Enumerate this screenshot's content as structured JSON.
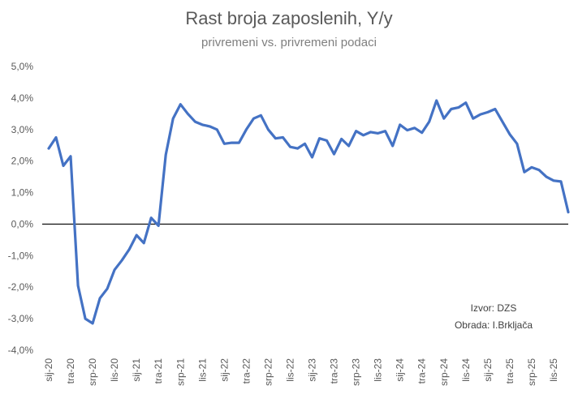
{
  "chart_data": {
    "type": "line",
    "title": "Rast broja zaposlenih, Y/y",
    "subtitle": "privremeni vs. privremeni podaci",
    "ylim": [
      -4,
      5
    ],
    "yticks": [
      "-4,0%",
      "-3,0%",
      "-2,0%",
      "-1,0%",
      "0,0%",
      "1,0%",
      "2,0%",
      "3,0%",
      "4,0%",
      "5,0%"
    ],
    "ytick_values": [
      -4,
      -3,
      -2,
      -1,
      0,
      1,
      2,
      3,
      4,
      5
    ],
    "xticks": [
      {
        "label": "sij-20",
        "index": 0
      },
      {
        "label": "tra-20",
        "index": 3
      },
      {
        "label": "srp-20",
        "index": 6
      },
      {
        "label": "lis-20",
        "index": 9
      },
      {
        "label": "sij-21",
        "index": 12
      },
      {
        "label": "tra-21",
        "index": 15
      },
      {
        "label": "srp-21",
        "index": 18
      },
      {
        "label": "lis-21",
        "index": 21
      },
      {
        "label": "sij-22",
        "index": 24
      },
      {
        "label": "tra-22",
        "index": 27
      },
      {
        "label": "srp-22",
        "index": 30
      },
      {
        "label": "lis-22",
        "index": 33
      },
      {
        "label": "sij-23",
        "index": 36
      },
      {
        "label": "tra-23",
        "index": 39
      },
      {
        "label": "srp-23",
        "index": 42
      },
      {
        "label": "lis-23",
        "index": 45
      },
      {
        "label": "sij-24",
        "index": 48
      },
      {
        "label": "tra-24",
        "index": 51
      },
      {
        "label": "srp-24",
        "index": 54
      },
      {
        "label": "lis-24",
        "index": 57
      },
      {
        "label": "sij-25",
        "index": 60
      },
      {
        "label": "tra-25",
        "index": 63
      },
      {
        "label": "srp-25",
        "index": 66
      },
      {
        "label": "lis-25",
        "index": 69
      }
    ],
    "series": [
      {
        "color": "#4472C4",
        "values": [
          2.4,
          2.75,
          1.85,
          2.15,
          -1.95,
          -3.0,
          -3.15,
          -2.35,
          -2.05,
          -1.45,
          -1.15,
          -0.8,
          -0.35,
          -0.6,
          0.2,
          -0.05,
          2.2,
          3.35,
          3.8,
          3.5,
          3.25,
          3.15,
          3.1,
          3.0,
          2.55,
          2.58,
          2.58,
          3.0,
          3.35,
          3.45,
          3.0,
          2.72,
          2.75,
          2.45,
          2.4,
          2.55,
          2.12,
          2.72,
          2.65,
          2.22,
          2.7,
          2.48,
          2.95,
          2.82,
          2.92,
          2.88,
          2.95,
          2.48,
          3.15,
          2.98,
          3.05,
          2.9,
          3.25,
          3.92,
          3.35,
          3.65,
          3.7,
          3.85,
          3.35,
          3.48,
          3.55,
          3.65,
          3.25,
          2.85,
          2.55,
          1.65,
          1.8,
          1.72,
          1.5,
          1.38,
          1.35,
          0.38
        ]
      }
    ],
    "annotations": [
      "Izvor: DZS",
      "Obrada: I.Brkljača"
    ]
  }
}
